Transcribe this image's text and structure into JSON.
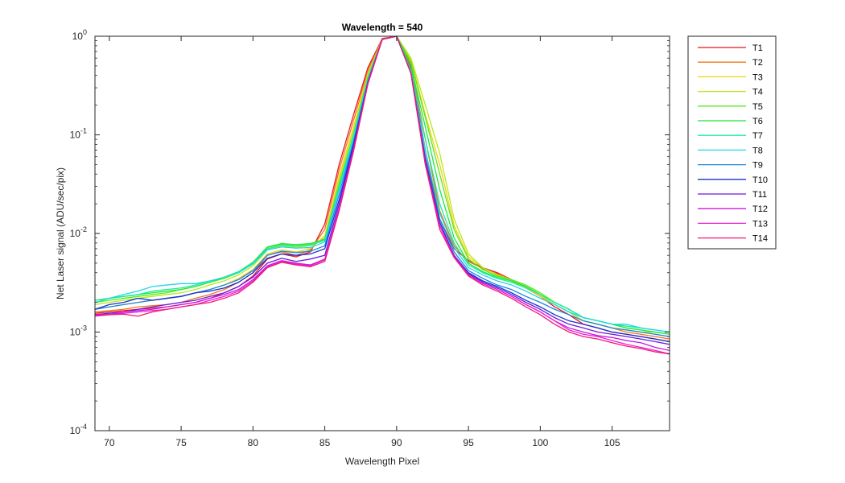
{
  "chart_data": {
    "type": "line",
    "title": "Wavelength = 540",
    "xlabel": "Wavelength Pixel",
    "ylabel": "Net Laser signal  (ADU/sec/pix)",
    "xlim": [
      69,
      109
    ],
    "ylim": [
      0.0001,
      1
    ],
    "yscale": "log",
    "xticks": [
      70,
      75,
      80,
      85,
      90,
      95,
      100,
      105
    ],
    "xtick_labels": [
      "70",
      "75",
      "80",
      "85",
      "90",
      "95",
      "100",
      "105"
    ],
    "ytick_exponents": [
      -4,
      -3,
      -2,
      -1,
      0
    ],
    "ytick_base": "10",
    "grid": false,
    "legend_position": "outside-right",
    "x": [
      69,
      70,
      71,
      72,
      73,
      74,
      75,
      76,
      77,
      78,
      79,
      80,
      81,
      82,
      83,
      84,
      85,
      86,
      87,
      88,
      89,
      90,
      91,
      92,
      93,
      94,
      95,
      96,
      97,
      98,
      99,
      100,
      101,
      102,
      103,
      104,
      105,
      106,
      107,
      108,
      109
    ],
    "series": [
      {
        "name": "T1",
        "color": "#e8141e",
        "values": [
          0.00155,
          0.0016,
          0.00165,
          0.0017,
          0.00175,
          0.0018,
          0.0019,
          0.002,
          0.0022,
          0.0025,
          0.0029,
          0.0037,
          0.0055,
          0.0062,
          0.0058,
          0.0065,
          0.0125,
          0.05,
          0.16,
          0.48,
          0.95,
          1.0,
          0.48,
          0.07,
          0.014,
          0.007,
          0.0053,
          0.0045,
          0.004,
          0.0034,
          0.0028,
          0.0023,
          0.0018,
          0.0015,
          0.0012,
          0.0011,
          0.001,
          0.00095,
          0.0009,
          0.00085,
          0.0008
        ]
      },
      {
        "name": "T2",
        "color": "#f07418",
        "values": [
          0.0016,
          0.00165,
          0.0017,
          0.0018,
          0.00185,
          0.0019,
          0.002,
          0.0022,
          0.0024,
          0.0027,
          0.0032,
          0.004,
          0.006,
          0.0065,
          0.006,
          0.0068,
          0.011,
          0.044,
          0.14,
          0.45,
          0.94,
          1.0,
          0.52,
          0.09,
          0.017,
          0.0075,
          0.0052,
          0.0044,
          0.0039,
          0.0034,
          0.0028,
          0.0023,
          0.0019,
          0.0016,
          0.0013,
          0.0012,
          0.0011,
          0.001,
          0.00095,
          0.0009,
          0.00085
        ]
      },
      {
        "name": "T3",
        "color": "#f5cf10",
        "values": [
          0.0017,
          0.0018,
          0.0019,
          0.002,
          0.0021,
          0.0022,
          0.0023,
          0.0025,
          0.0027,
          0.003,
          0.0035,
          0.0043,
          0.0062,
          0.0068,
          0.0065,
          0.007,
          0.0095,
          0.038,
          0.12,
          0.42,
          0.93,
          1.0,
          0.58,
          0.16,
          0.05,
          0.012,
          0.0058,
          0.0045,
          0.0038,
          0.0033,
          0.0028,
          0.0023,
          0.0019,
          0.0016,
          0.0013,
          0.0012,
          0.0011,
          0.00105,
          0.001,
          0.00095,
          0.0009
        ]
      },
      {
        "name": "T4",
        "color": "#b6ea18",
        "values": [
          0.0019,
          0.002,
          0.0021,
          0.0022,
          0.0023,
          0.0024,
          0.0025,
          0.0027,
          0.003,
          0.0033,
          0.0038,
          0.0047,
          0.0068,
          0.0075,
          0.0072,
          0.0075,
          0.009,
          0.035,
          0.11,
          0.4,
          0.93,
          1.0,
          0.6,
          0.2,
          0.065,
          0.014,
          0.0062,
          0.0045,
          0.0038,
          0.0034,
          0.0029,
          0.0024,
          0.0019,
          0.0016,
          0.0013,
          0.0012,
          0.0011,
          0.00105,
          0.001,
          0.001,
          0.00095
        ]
      },
      {
        "name": "T5",
        "color": "#5ae81c",
        "values": [
          0.002,
          0.0021,
          0.0022,
          0.0023,
          0.0024,
          0.0025,
          0.0027,
          0.0029,
          0.0032,
          0.0035,
          0.004,
          0.005,
          0.0072,
          0.0078,
          0.0076,
          0.0078,
          0.0088,
          0.032,
          0.1,
          0.38,
          0.93,
          1.0,
          0.55,
          0.15,
          0.04,
          0.011,
          0.0055,
          0.0043,
          0.0037,
          0.0034,
          0.003,
          0.0025,
          0.002,
          0.0017,
          0.0014,
          0.0013,
          0.0012,
          0.0011,
          0.00105,
          0.001,
          0.00095
        ]
      },
      {
        "name": "T6",
        "color": "#1ee83c",
        "values": [
          0.0021,
          0.0022,
          0.0023,
          0.0024,
          0.0025,
          0.0026,
          0.0027,
          0.0029,
          0.0032,
          0.0036,
          0.0041,
          0.0051,
          0.0073,
          0.0079,
          0.0077,
          0.0079,
          0.0087,
          0.03,
          0.1,
          0.38,
          0.93,
          1.0,
          0.5,
          0.12,
          0.028,
          0.009,
          0.005,
          0.0041,
          0.0036,
          0.0033,
          0.0029,
          0.0024,
          0.002,
          0.0017,
          0.0014,
          0.0013,
          0.0012,
          0.0011,
          0.00105,
          0.001,
          0.00095
        ]
      },
      {
        "name": "T7",
        "color": "#1ee8a0",
        "values": [
          0.0021,
          0.0022,
          0.0023,
          0.0024,
          0.0026,
          0.0027,
          0.0028,
          0.003,
          0.0033,
          0.0036,
          0.0041,
          0.005,
          0.007,
          0.0076,
          0.0074,
          0.0076,
          0.0085,
          0.03,
          0.1,
          0.38,
          0.93,
          1.0,
          0.45,
          0.09,
          0.02,
          0.008,
          0.0048,
          0.004,
          0.0035,
          0.0032,
          0.0028,
          0.0024,
          0.002,
          0.0017,
          0.0014,
          0.0013,
          0.0012,
          0.00115,
          0.0011,
          0.00105,
          0.001
        ]
      },
      {
        "name": "T8",
        "color": "#1ed8e6",
        "values": [
          0.002,
          0.0022,
          0.0024,
          0.0026,
          0.0029,
          0.003,
          0.0031,
          0.0031,
          0.0033,
          0.0036,
          0.004,
          0.0049,
          0.0068,
          0.0073,
          0.0071,
          0.0072,
          0.0082,
          0.028,
          0.09,
          0.36,
          0.93,
          1.0,
          0.42,
          0.07,
          0.016,
          0.0072,
          0.0045,
          0.0038,
          0.0033,
          0.003,
          0.0026,
          0.0022,
          0.0019,
          0.0016,
          0.0014,
          0.0013,
          0.0012,
          0.0012,
          0.0011,
          0.00105,
          0.001
        ]
      },
      {
        "name": "T9",
        "color": "#1a86e0",
        "values": [
          0.0017,
          0.0018,
          0.0019,
          0.002,
          0.0021,
          0.0022,
          0.0023,
          0.0025,
          0.0027,
          0.003,
          0.0034,
          0.0042,
          0.006,
          0.0066,
          0.0064,
          0.0066,
          0.0075,
          0.025,
          0.085,
          0.35,
          0.93,
          1.0,
          0.42,
          0.06,
          0.014,
          0.0065,
          0.0042,
          0.0035,
          0.003,
          0.0027,
          0.0023,
          0.002,
          0.0017,
          0.0015,
          0.0013,
          0.0012,
          0.0011,
          0.00105,
          0.001,
          0.00095,
          0.0009
        ]
      },
      {
        "name": "T10",
        "color": "#1a2ed0",
        "values": [
          0.0017,
          0.0019,
          0.002,
          0.0022,
          0.0021,
          0.0022,
          0.0023,
          0.0025,
          0.0026,
          0.0028,
          0.0032,
          0.004,
          0.0056,
          0.0062,
          0.006,
          0.0062,
          0.007,
          0.022,
          0.08,
          0.34,
          0.93,
          1.0,
          0.42,
          0.055,
          0.013,
          0.006,
          0.004,
          0.0033,
          0.0029,
          0.0025,
          0.0021,
          0.0018,
          0.0015,
          0.0013,
          0.0012,
          0.0011,
          0.001,
          0.00095,
          0.0009,
          0.00085,
          0.0008
        ]
      },
      {
        "name": "T11",
        "color": "#6a1ae0",
        "values": [
          0.0015,
          0.00155,
          0.0016,
          0.0017,
          0.0018,
          0.0019,
          0.002,
          0.0021,
          0.0023,
          0.0025,
          0.0029,
          0.0036,
          0.005,
          0.0056,
          0.0052,
          0.0055,
          0.006,
          0.02,
          0.075,
          0.34,
          0.93,
          1.0,
          0.42,
          0.055,
          0.012,
          0.006,
          0.0039,
          0.0032,
          0.0028,
          0.0024,
          0.002,
          0.0017,
          0.0014,
          0.0012,
          0.0011,
          0.001,
          0.00095,
          0.0009,
          0.00085,
          0.0008,
          0.00075
        ]
      },
      {
        "name": "T12",
        "color": "#c41ae0",
        "values": [
          0.0015,
          0.0015,
          0.0016,
          0.00165,
          0.0017,
          0.0018,
          0.0019,
          0.002,
          0.0022,
          0.0024,
          0.0027,
          0.0034,
          0.0047,
          0.0053,
          0.005,
          0.0048,
          0.0055,
          0.018,
          0.07,
          0.33,
          0.93,
          1.0,
          0.42,
          0.05,
          0.012,
          0.0058,
          0.0038,
          0.0031,
          0.0027,
          0.0023,
          0.0019,
          0.0016,
          0.0013,
          0.0011,
          0.001,
          0.00092,
          0.00088,
          0.00082,
          0.00078,
          0.0007,
          0.00065
        ]
      },
      {
        "name": "T13",
        "color": "#f01ad0",
        "values": [
          0.00145,
          0.0015,
          0.00155,
          0.0016,
          0.00165,
          0.0017,
          0.0018,
          0.0019,
          0.0021,
          0.0023,
          0.0026,
          0.0033,
          0.0046,
          0.0052,
          0.0049,
          0.0047,
          0.0054,
          0.018,
          0.07,
          0.33,
          0.93,
          1.0,
          0.42,
          0.05,
          0.012,
          0.0058,
          0.0038,
          0.0031,
          0.0027,
          0.0023,
          0.0019,
          0.0016,
          0.0013,
          0.00105,
          0.00095,
          0.0009,
          0.00082,
          0.00075,
          0.0007,
          0.00065,
          0.0006
        ]
      },
      {
        "name": "T14",
        "color": "#f01a78",
        "values": [
          0.00148,
          0.0015,
          0.00152,
          0.00145,
          0.0016,
          0.0017,
          0.0018,
          0.0019,
          0.002,
          0.0022,
          0.0025,
          0.0032,
          0.0045,
          0.0051,
          0.0048,
          0.0046,
          0.0052,
          0.017,
          0.068,
          0.33,
          0.93,
          1.0,
          0.42,
          0.05,
          0.011,
          0.0057,
          0.0037,
          0.003,
          0.0026,
          0.0022,
          0.0018,
          0.0015,
          0.0012,
          0.001,
          0.0009,
          0.00085,
          0.00078,
          0.00072,
          0.00068,
          0.00063,
          0.0006
        ]
      }
    ]
  }
}
